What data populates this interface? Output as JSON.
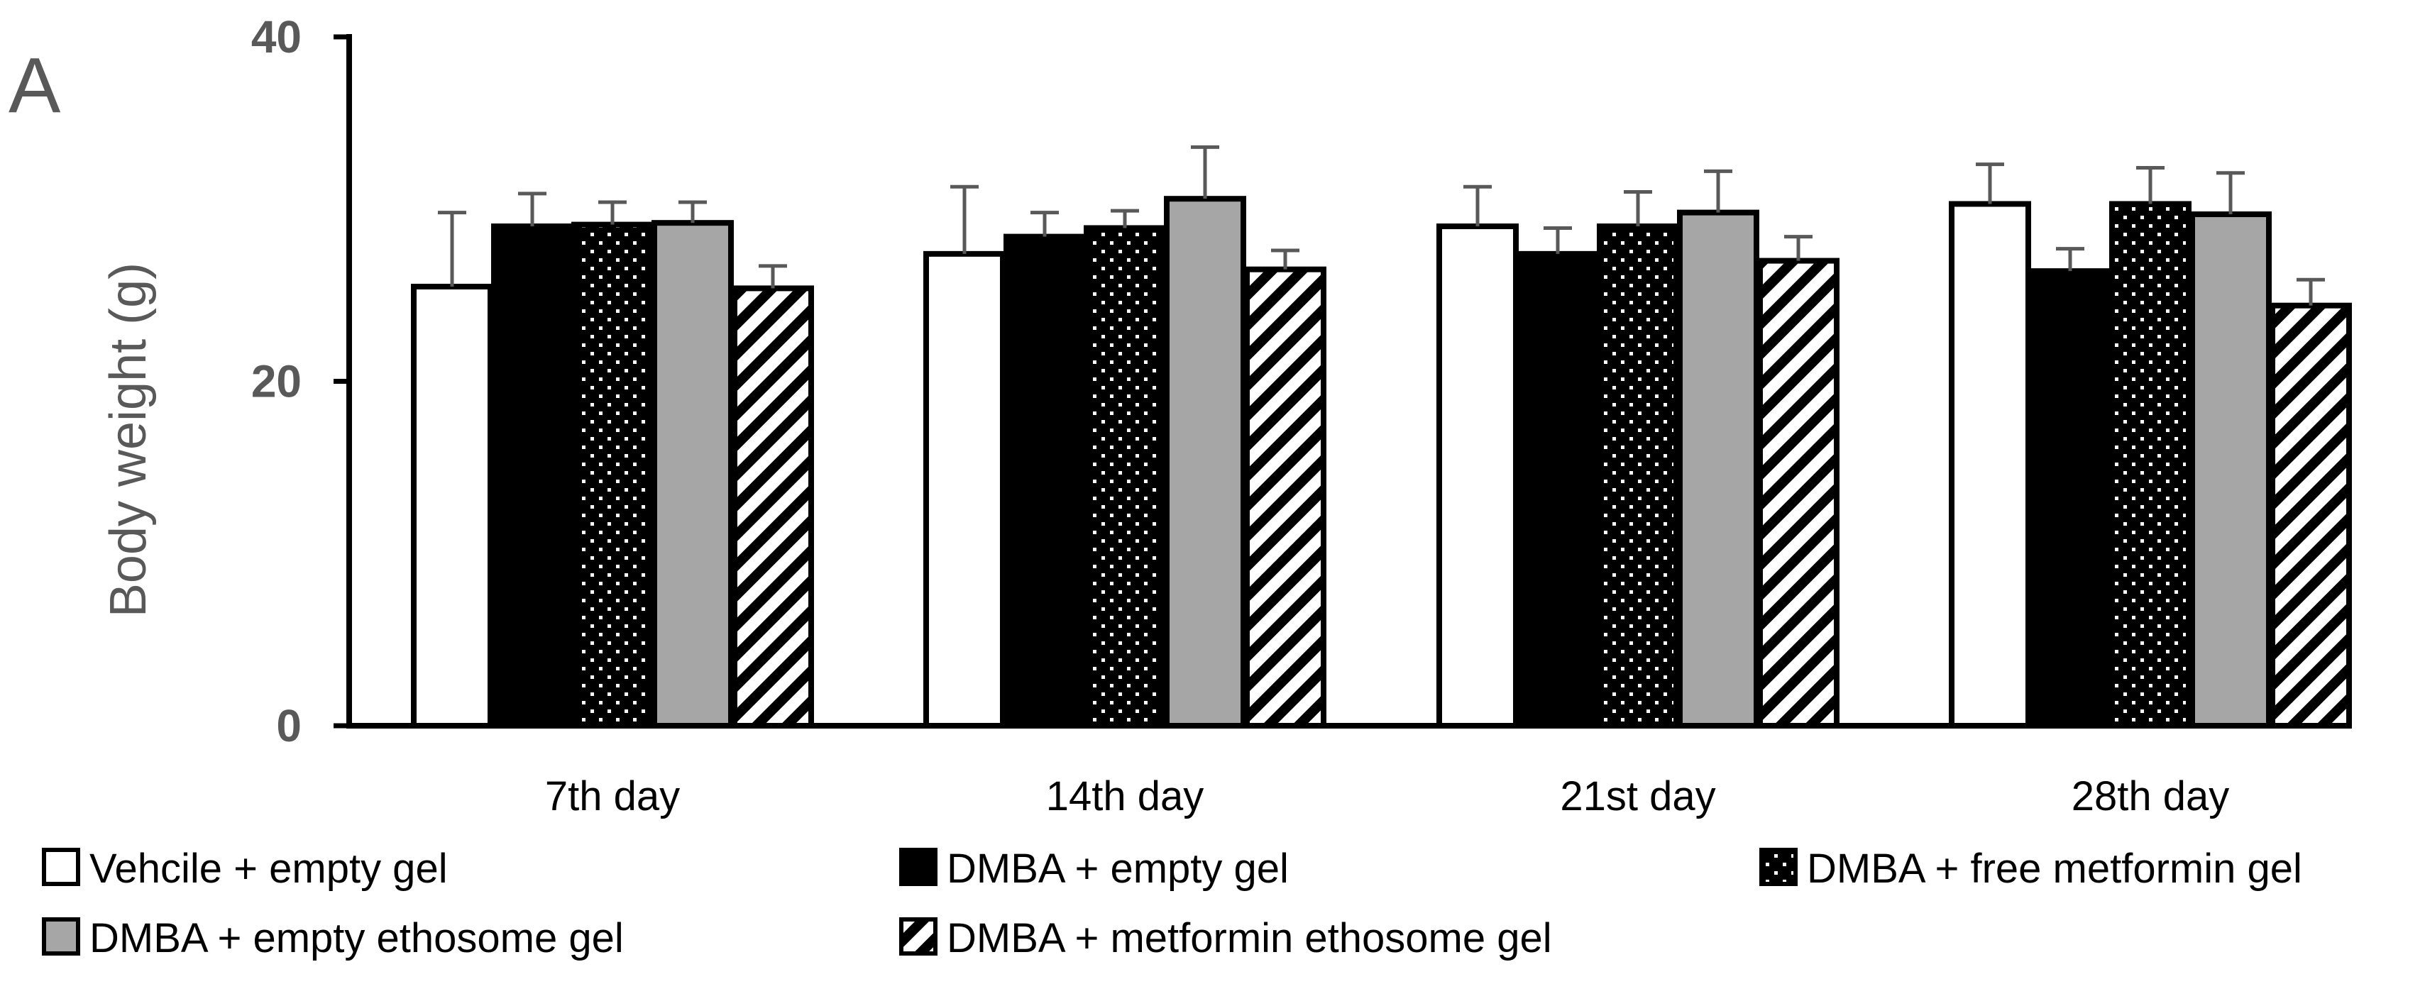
{
  "panel_label": "A",
  "chart_data": {
    "type": "bar",
    "title": "",
    "xlabel": "",
    "ylabel": "Body weight (g)",
    "ylim": [
      0,
      40
    ],
    "yticks": [
      0,
      20,
      40
    ],
    "grid": false,
    "legend_position": "bottom",
    "categories": [
      "7th day",
      "14th day",
      "21st day",
      "28th day"
    ],
    "series": [
      {
        "name": "Vehcile + empty gel",
        "pattern": "white",
        "values": [
          25.5,
          27.4,
          29.0,
          30.3
        ],
        "errors": [
          4.3,
          3.9,
          2.3,
          2.3
        ]
      },
      {
        "name": "DMBA + empty gel",
        "pattern": "black",
        "values": [
          29.0,
          28.4,
          27.4,
          26.4
        ],
        "errors": [
          1.9,
          1.4,
          1.5,
          1.3
        ]
      },
      {
        "name": "DMBA + free metformin gel",
        "pattern": "dots",
        "values": [
          29.1,
          28.9,
          29.0,
          30.3
        ],
        "errors": [
          1.3,
          1.0,
          2.0,
          2.1
        ]
      },
      {
        "name": "DMBA + empty ethosome gel",
        "pattern": "gray",
        "values": [
          29.2,
          30.6,
          29.8,
          29.7
        ],
        "errors": [
          1.2,
          3.0,
          2.4,
          2.4
        ]
      },
      {
        "name": "DMBA + metformin ethosome gel",
        "pattern": "stripes",
        "values": [
          25.4,
          26.5,
          27.0,
          24.4
        ],
        "errors": [
          1.3,
          1.1,
          1.4,
          1.5
        ]
      }
    ]
  }
}
